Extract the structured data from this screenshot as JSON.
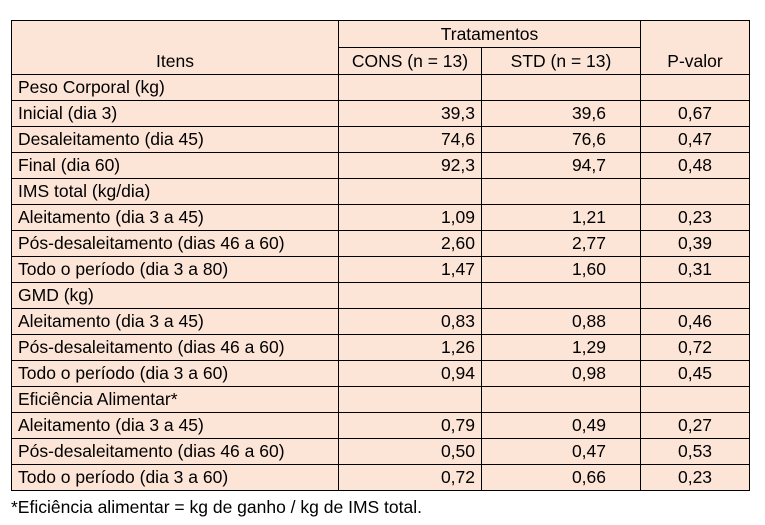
{
  "header": {
    "items_label": "Itens",
    "group_label": "Tratamentos",
    "cons_label": "CONS (n = 13)",
    "std_label": "STD (n = 13)",
    "p_label": "P-valor"
  },
  "sections": [
    {
      "title": "Peso Corporal (kg)",
      "rows": [
        {
          "label": "Inicial (dia 3)",
          "cons": "39,3",
          "std": "39,6",
          "p": "0,67"
        },
        {
          "label": "Desaleitamento (dia 45)",
          "cons": "74,6",
          "std": "76,6",
          "p": "0,47"
        },
        {
          "label": "Final (dia 60)",
          "cons": "92,3",
          "std": "94,7",
          "p": "0,48"
        }
      ]
    },
    {
      "title": "IMS total (kg/dia)",
      "rows": [
        {
          "label": "Aleitamento (dia 3 a 45)",
          "cons": "1,09",
          "std": "1,21",
          "p": "0,23"
        },
        {
          "label": "Pós-desaleitamento (dias 46 a 60)",
          "cons": "2,60",
          "std": "2,77",
          "p": "0,39"
        },
        {
          "label": "Todo o período (dia 3 a 80)",
          "cons": "1,47",
          "std": "1,60",
          "p": "0,31"
        }
      ]
    },
    {
      "title": "GMD (kg)",
      "rows": [
        {
          "label": "Aleitamento (dia 3 a 45)",
          "cons": "0,83",
          "std": "0,88",
          "p": "0,46"
        },
        {
          "label": "Pós-desaleitamento (dias 46 a 60)",
          "cons": "1,26",
          "std": "1,29",
          "p": "0,72"
        },
        {
          "label": "Todo o período (dia 3 a 60)",
          "cons": "0,94",
          "std": "0,98",
          "p": "0,45"
        }
      ]
    },
    {
      "title": "Eficiência Alimentar*",
      "rows": [
        {
          "label": "Aleitamento (dia 3 a 45)",
          "cons": "0,79",
          "std": "0,49",
          "p": "0,27"
        },
        {
          "label": "Pós-desaleitamento (dias 46 a 60)",
          "cons": "0,50",
          "std": "0,47",
          "p": "0,53"
        },
        {
          "label": "Todo o período (dia 3 a 60)",
          "cons": "0,72",
          "std": "0,66",
          "p": "0,23"
        }
      ]
    }
  ],
  "footnote": "*Eficiência alimentar = kg de ganho / kg de IMS total.",
  "colors": {
    "table_background": "#fce4d6",
    "border": "#000000",
    "text": "#000000"
  }
}
